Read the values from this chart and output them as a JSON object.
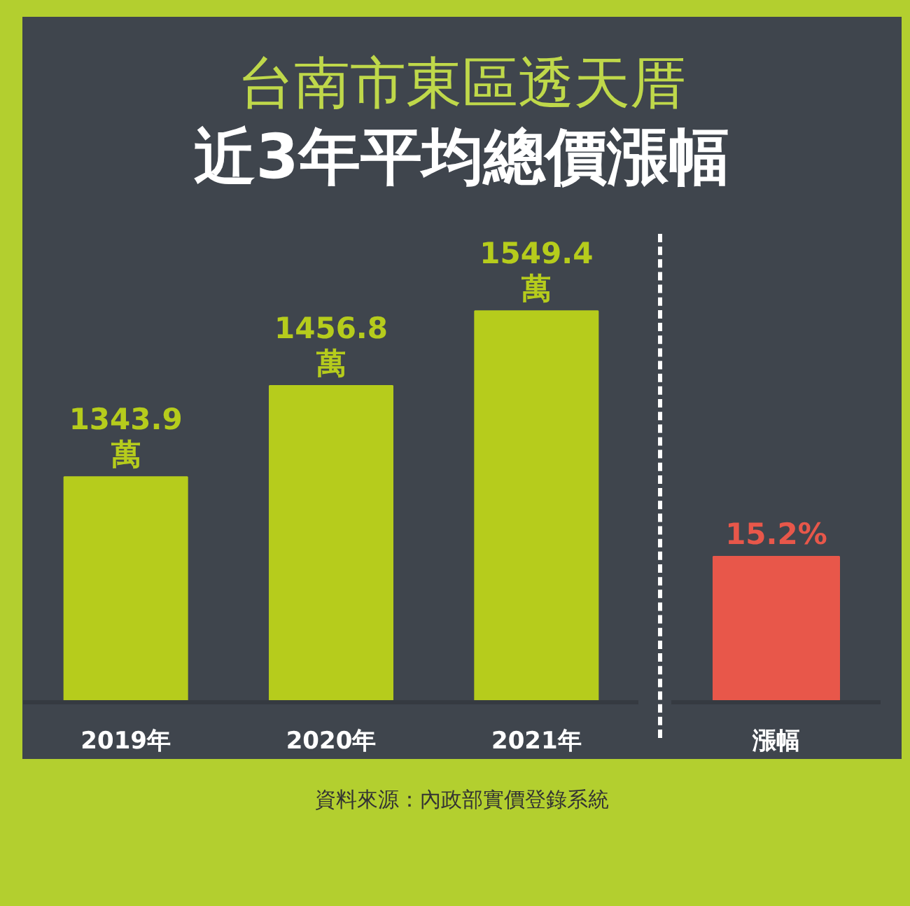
{
  "chart_data": [
    {
      "type": "bar",
      "title": "台南市東區透天厝",
      "subtitle": "近3年平均總價漲幅",
      "categories": [
        "2019年",
        "2020年",
        "2021年"
      ],
      "values": [
        1343.9,
        1456.8,
        1549.4
      ],
      "value_labels": [
        "1343.9\n萬",
        "1456.8\n萬",
        "1549.4\n萬"
      ],
      "color": "#b6cc1c",
      "ylim": [
        1065,
        1670
      ],
      "grid": false,
      "annotations": [
        "資料來源：內政部實價登錄系統"
      ]
    },
    {
      "type": "bar",
      "categories": [
        "漲幅"
      ],
      "values": [
        15.2
      ],
      "value_labels": [
        "15.2%"
      ],
      "color": "#e8574a",
      "ylim": [
        0,
        51
      ],
      "grid": false
    }
  ]
}
